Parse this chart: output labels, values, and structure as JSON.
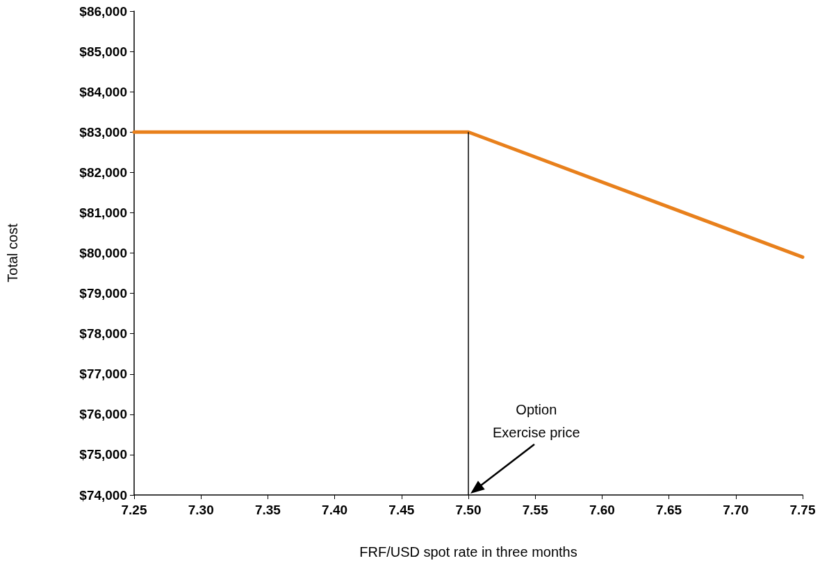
{
  "chart_data": {
    "type": "line",
    "xlabel": "FRF/USD spot rate in three months",
    "ylabel": "Total cost",
    "series": [
      {
        "color": "#e8801c",
        "x": [
          7.25,
          7.5,
          7.75
        ],
        "values": [
          83000,
          83000,
          79900
        ]
      }
    ],
    "ref_lines": [
      {
        "axis": "x",
        "value": 7.5,
        "color": "#000000",
        "label": "Option\nExercise price"
      }
    ],
    "xlim": [
      7.25,
      7.75
    ],
    "xticks": [
      {
        "value": 7.25,
        "label": "7.25"
      },
      {
        "value": 7.3,
        "label": "7.30"
      },
      {
        "value": 7.35,
        "label": "7.35"
      },
      {
        "value": 7.4,
        "label": "7.40"
      },
      {
        "value": 7.45,
        "label": "7.45"
      },
      {
        "value": 7.5,
        "label": "7.50"
      },
      {
        "value": 7.55,
        "label": "7.55"
      },
      {
        "value": 7.6,
        "label": "7.60"
      },
      {
        "value": 7.65,
        "label": "7.65"
      },
      {
        "value": 7.7,
        "label": "7.70"
      },
      {
        "value": 7.75,
        "label": "7.75"
      }
    ],
    "ylim": [
      74000,
      86000
    ],
    "yticks": [
      {
        "value": 74000,
        "label": "$74,000"
      },
      {
        "value": 75000,
        "label": "$75,000"
      },
      {
        "value": 76000,
        "label": "$76,000"
      },
      {
        "value": 77000,
        "label": "$77,000"
      },
      {
        "value": 78000,
        "label": "$78,000"
      },
      {
        "value": 79000,
        "label": "$79,000"
      },
      {
        "value": 80000,
        "label": "$80,000"
      },
      {
        "value": 81000,
        "label": "$81,000"
      },
      {
        "value": 82000,
        "label": "$82,000"
      },
      {
        "value": 83000,
        "label": "$83,000"
      },
      {
        "value": 84000,
        "label": "$84,000"
      },
      {
        "value": 85000,
        "label": "$85,000"
      },
      {
        "value": 86000,
        "label": "$86,000"
      }
    ],
    "grid": false,
    "marker": "none",
    "line_style": "solid"
  }
}
